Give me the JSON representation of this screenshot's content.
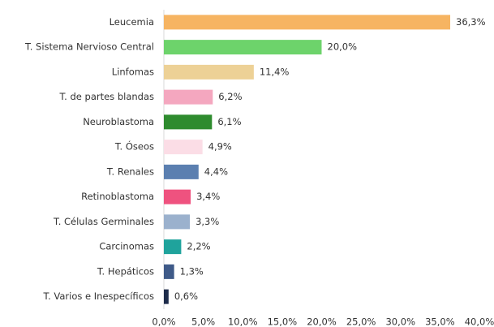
{
  "chart_data": {
    "type": "bar",
    "orientation": "horizontal",
    "categories": [
      "Leucemia",
      "T. Sistema Nervioso Central",
      "Linfomas",
      "T. de partes blandas",
      "Neuroblastoma",
      "T. Óseos",
      "T. Renales",
      "Retinoblastoma",
      "T. Células Germinales",
      "Carcinomas",
      "T. Hepáticos",
      "T. Varios e Inespecíficos"
    ],
    "values": [
      36.3,
      20.0,
      11.4,
      6.2,
      6.1,
      4.9,
      4.4,
      3.4,
      3.3,
      2.2,
      1.3,
      0.6
    ],
    "value_labels": [
      "36,3%",
      "20,0%",
      "11,4%",
      "6,2%",
      "6,1%",
      "4,9%",
      "4,4%",
      "3,4%",
      "3,3%",
      "2,2%",
      "1,3%",
      "0,6%"
    ],
    "colors": [
      "#f6b462",
      "#6dd36b",
      "#edd196",
      "#f4a7bf",
      "#2e8b2e",
      "#fbdde6",
      "#5b7fb0",
      "#ef527f",
      "#9bb1cd",
      "#1fa39c",
      "#3f5a88",
      "#1d2b4a"
    ],
    "xlim": [
      0,
      40
    ],
    "xticks": [
      {
        "value": 0,
        "label": "0,0%"
      },
      {
        "value": 5,
        "label": "5,0%"
      },
      {
        "value": 10,
        "label": "10,0%"
      },
      {
        "value": 15,
        "label": "15,0%"
      },
      {
        "value": 20,
        "label": "20,0%"
      },
      {
        "value": 25,
        "label": "25,0%"
      },
      {
        "value": 30,
        "label": "30,0%"
      },
      {
        "value": 35,
        "label": "35,0%"
      },
      {
        "value": 40,
        "label": "40,0%"
      }
    ],
    "grid": false
  }
}
